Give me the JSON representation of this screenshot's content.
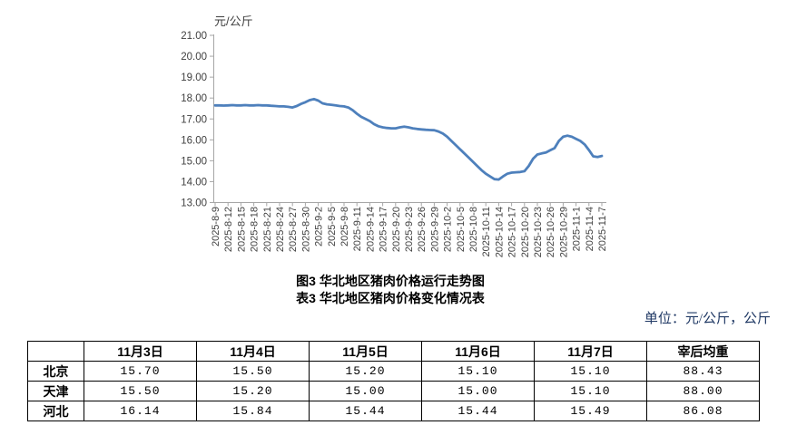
{
  "titles": {
    "figure": "图3  华北地区猪肉价格运行走势图",
    "table": "表3  华北地区猪肉价格变化情况表"
  },
  "unit_note": "单位：元/公斤，公斤",
  "chart_data": {
    "type": "line",
    "ylabel": "元/公斤",
    "ylim": [
      13,
      21
    ],
    "y_ticks": [
      "13.00",
      "14.00",
      "15.00",
      "16.00",
      "17.00",
      "18.00",
      "19.00",
      "20.00",
      "21.00"
    ],
    "grid": false,
    "legend": "none",
    "line_color": "#4E80BC",
    "axis_color": "#A6A6A6",
    "tick_label_color": "#404040",
    "x_tick_every": 3,
    "x_tick_labels": [
      "2025-8-9",
      "2025-8-12",
      "2025-8-15",
      "2025-8-18",
      "2025-8-21",
      "2025-8-24",
      "2025-8-27",
      "2025-8-30",
      "2025-9-2",
      "2025-9-5",
      "2025-9-8",
      "2025-9-11",
      "2025-9-14",
      "2025-9-17",
      "2025-9-20",
      "2025-9-23",
      "2025-9-26",
      "2025-9-29",
      "2025-10-2",
      "2025-10-5",
      "2025-10-8",
      "2025-10-11",
      "2025-10-14",
      "2025-10-17",
      "2025-10-20",
      "2025-10-23",
      "2025-10-26",
      "2025-10-29",
      "2025-11-1",
      "2025-11-4",
      "2025-11-7"
    ],
    "x": [
      "2025-8-9",
      "2025-8-10",
      "2025-8-11",
      "2025-8-12",
      "2025-8-13",
      "2025-8-14",
      "2025-8-15",
      "2025-8-16",
      "2025-8-17",
      "2025-8-18",
      "2025-8-19",
      "2025-8-20",
      "2025-8-21",
      "2025-8-22",
      "2025-8-23",
      "2025-8-24",
      "2025-8-25",
      "2025-8-26",
      "2025-8-27",
      "2025-8-28",
      "2025-8-29",
      "2025-8-30",
      "2025-8-31",
      "2025-9-1",
      "2025-9-2",
      "2025-9-3",
      "2025-9-4",
      "2025-9-5",
      "2025-9-6",
      "2025-9-7",
      "2025-9-8",
      "2025-9-9",
      "2025-9-10",
      "2025-9-11",
      "2025-9-12",
      "2025-9-13",
      "2025-9-14",
      "2025-9-15",
      "2025-9-16",
      "2025-9-17",
      "2025-9-18",
      "2025-9-19",
      "2025-9-20",
      "2025-9-21",
      "2025-9-22",
      "2025-9-23",
      "2025-9-24",
      "2025-9-25",
      "2025-9-26",
      "2025-9-27",
      "2025-9-28",
      "2025-9-29",
      "2025-9-30",
      "2025-10-1",
      "2025-10-2",
      "2025-10-3",
      "2025-10-4",
      "2025-10-5",
      "2025-10-6",
      "2025-10-7",
      "2025-10-8",
      "2025-10-9",
      "2025-10-10",
      "2025-10-11",
      "2025-10-12",
      "2025-10-13",
      "2025-10-14",
      "2025-10-15",
      "2025-10-16",
      "2025-10-17",
      "2025-10-18",
      "2025-10-19",
      "2025-10-20",
      "2025-10-21",
      "2025-10-22",
      "2025-10-23",
      "2025-10-24",
      "2025-10-25",
      "2025-10-26",
      "2025-10-27",
      "2025-10-28",
      "2025-10-29",
      "2025-10-30",
      "2025-10-31",
      "2025-11-1",
      "2025-11-2",
      "2025-11-3",
      "2025-11-4",
      "2025-11-5",
      "2025-11-6",
      "2025-11-7"
    ],
    "values": [
      17.65,
      17.65,
      17.64,
      17.65,
      17.66,
      17.65,
      17.65,
      17.66,
      17.65,
      17.65,
      17.66,
      17.65,
      17.65,
      17.63,
      17.62,
      17.6,
      17.6,
      17.58,
      17.55,
      17.62,
      17.72,
      17.8,
      17.9,
      17.95,
      17.88,
      17.75,
      17.7,
      17.68,
      17.65,
      17.62,
      17.6,
      17.55,
      17.42,
      17.25,
      17.1,
      17.0,
      16.9,
      16.75,
      16.65,
      16.6,
      16.57,
      16.55,
      16.55,
      16.6,
      16.63,
      16.6,
      16.55,
      16.52,
      16.5,
      16.48,
      16.47,
      16.46,
      16.4,
      16.3,
      16.15,
      15.95,
      15.75,
      15.55,
      15.35,
      15.15,
      14.95,
      14.75,
      14.55,
      14.38,
      14.25,
      14.12,
      14.1,
      14.25,
      14.38,
      14.43,
      14.45,
      14.46,
      14.5,
      14.75,
      15.1,
      15.3,
      15.35,
      15.4,
      15.5,
      15.6,
      15.95,
      16.15,
      16.2,
      16.15,
      16.05,
      15.95,
      15.78,
      15.51,
      15.21,
      15.18,
      15.23
    ]
  },
  "table": {
    "columns": [
      "",
      "11月3日",
      "11月4日",
      "11月5日",
      "11月6日",
      "11月7日",
      "宰后均重"
    ],
    "rows": [
      {
        "label": "北京",
        "values": [
          "15.70",
          "15.50",
          "15.20",
          "15.10",
          "15.10",
          "88.43"
        ]
      },
      {
        "label": "天津",
        "values": [
          "15.50",
          "15.20",
          "15.00",
          "15.00",
          "15.10",
          "88.00"
        ]
      },
      {
        "label": "河北",
        "values": [
          "16.14",
          "15.84",
          "15.44",
          "15.44",
          "15.49",
          "86.08"
        ]
      }
    ]
  }
}
